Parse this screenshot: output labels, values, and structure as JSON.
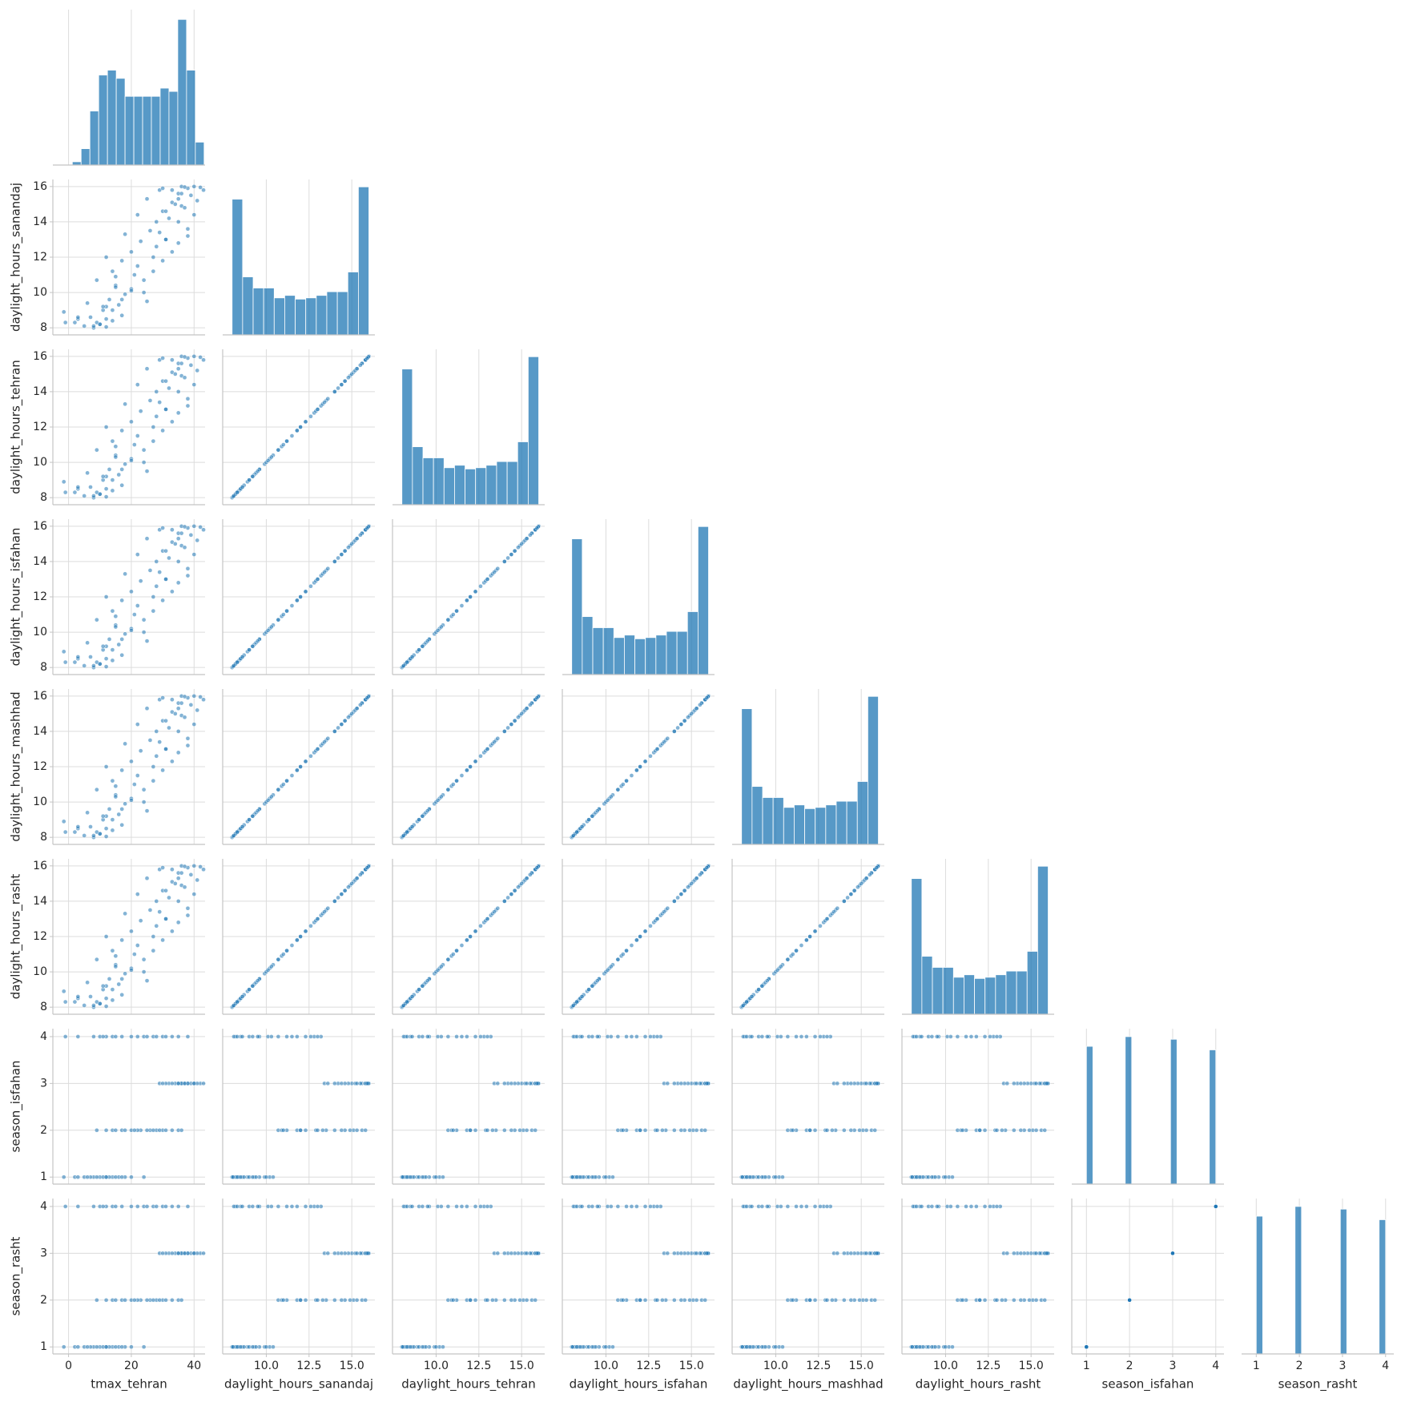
{
  "chart_data": {
    "type": "pairplot",
    "color": "#1f77b4",
    "grid": true,
    "corner": true,
    "variables": [
      {
        "name": "tmax_tehran",
        "xlim": [
          -5,
          43.5
        ],
        "xticks": [
          0,
          20,
          40
        ],
        "ylim": [
          -5,
          43.5
        ],
        "yticks": []
      },
      {
        "name": "daylight_hours_sanandaj",
        "xlim": [
          7.45,
          16.35
        ],
        "xticks": [
          {
            "value": 10,
            "label": "10.0"
          },
          {
            "value": 12.5,
            "label": "12.5"
          },
          {
            "value": 15,
            "label": "15.0"
          }
        ],
        "ylim": [
          7.6,
          16.4
        ],
        "yticks": [
          8,
          10,
          12,
          14,
          16
        ]
      },
      {
        "name": "daylight_hours_tehran",
        "xlim": [
          7.45,
          16.35
        ],
        "xticks": [
          {
            "value": 10,
            "label": "10.0"
          },
          {
            "value": 12.5,
            "label": "12.5"
          },
          {
            "value": 15,
            "label": "15.0"
          }
        ],
        "ylim": [
          7.6,
          16.4
        ],
        "yticks": [
          8,
          10,
          12,
          14,
          16
        ]
      },
      {
        "name": "daylight_hours_isfahan",
        "xlim": [
          7.45,
          16.35
        ],
        "xticks": [
          {
            "value": 10,
            "label": "10.0"
          },
          {
            "value": 12.5,
            "label": "12.5"
          },
          {
            "value": 15,
            "label": "15.0"
          }
        ],
        "ylim": [
          7.6,
          16.4
        ],
        "yticks": [
          8,
          10,
          12,
          14,
          16
        ]
      },
      {
        "name": "daylight_hours_mashhad",
        "xlim": [
          7.45,
          16.35
        ],
        "xticks": [
          {
            "value": 10,
            "label": "10.0"
          },
          {
            "value": 12.5,
            "label": "12.5"
          },
          {
            "value": 15,
            "label": "15.0"
          }
        ],
        "ylim": [
          7.6,
          16.4
        ],
        "yticks": [
          8,
          10,
          12,
          14,
          16
        ]
      },
      {
        "name": "daylight_hours_rasht",
        "xlim": [
          7.45,
          16.35
        ],
        "xticks": [
          {
            "value": 10,
            "label": "10.0"
          },
          {
            "value": 12.5,
            "label": "12.5"
          },
          {
            "value": 15,
            "label": "15.0"
          }
        ],
        "ylim": [
          7.6,
          16.4
        ],
        "yticks": [
          8,
          10,
          12,
          14,
          16
        ]
      },
      {
        "name": "season_isfahan",
        "xlim": [
          0.66,
          4.19
        ],
        "xticks": [
          1,
          2,
          3,
          4
        ],
        "ylim": [
          0.85,
          4.17
        ],
        "yticks": [
          1,
          2,
          3,
          4
        ]
      },
      {
        "name": "season_rasht",
        "xlim": [
          0.66,
          4.19
        ],
        "xticks": [
          1,
          2,
          3,
          4
        ],
        "ylim": [
          0.85,
          4.17
        ],
        "yticks": [
          1,
          2,
          3,
          4
        ]
      }
    ],
    "histograms": [
      {
        "bins": [
          1.2,
          4,
          6.8,
          9.6,
          12.4,
          15.2,
          18,
          20.8,
          23.6,
          26.4,
          29.2,
          32,
          34.8,
          37.6,
          40.4,
          43.2
        ],
        "counts": [
          2,
          10,
          33,
          55,
          58,
          53,
          42,
          42,
          42,
          42,
          47,
          45,
          89,
          58,
          14
        ],
        "ylim": [
          0,
          95
        ]
      },
      {
        "bins": [
          8,
          8.615,
          9.231,
          9.846,
          10.462,
          11.077,
          11.692,
          12.308,
          12.923,
          13.538,
          14.154,
          14.769,
          15.385,
          16
        ],
        "counts": [
          110,
          47,
          38,
          38,
          30,
          32,
          29,
          30,
          32,
          35,
          35,
          51,
          120
        ],
        "ylim": [
          0,
          126
        ]
      },
      {
        "bins": [
          8,
          8.615,
          9.231,
          9.846,
          10.462,
          11.077,
          11.692,
          12.308,
          12.923,
          13.538,
          14.154,
          14.769,
          15.385,
          16
        ],
        "counts": [
          110,
          47,
          38,
          38,
          30,
          32,
          29,
          30,
          32,
          35,
          35,
          51,
          120
        ],
        "ylim": [
          0,
          126
        ]
      },
      {
        "bins": [
          8,
          8.615,
          9.231,
          9.846,
          10.462,
          11.077,
          11.692,
          12.308,
          12.923,
          13.538,
          14.154,
          14.769,
          15.385,
          16
        ],
        "counts": [
          110,
          47,
          38,
          38,
          30,
          32,
          29,
          30,
          32,
          35,
          35,
          51,
          120
        ],
        "ylim": [
          0,
          126
        ]
      },
      {
        "bins": [
          8,
          8.615,
          9.231,
          9.846,
          10.462,
          11.077,
          11.692,
          12.308,
          12.923,
          13.538,
          14.154,
          14.769,
          15.385,
          16
        ],
        "counts": [
          110,
          47,
          38,
          38,
          30,
          32,
          29,
          30,
          32,
          35,
          35,
          51,
          120
        ],
        "ylim": [
          0,
          126
        ]
      },
      {
        "bins": [
          8,
          8.615,
          9.231,
          9.846,
          10.462,
          11.077,
          11.692,
          12.308,
          12.923,
          13.538,
          14.154,
          14.769,
          15.385,
          16
        ],
        "counts": [
          110,
          47,
          38,
          38,
          30,
          32,
          29,
          30,
          32,
          35,
          35,
          51,
          120
        ],
        "ylim": [
          0,
          126
        ]
      },
      {
        "bins": [
          1,
          1.15,
          1.3,
          1.45,
          1.6,
          1.75,
          1.9,
          2.05,
          2.2,
          2.35,
          2.5,
          2.65,
          2.8,
          2.95,
          3.1,
          3.25,
          3.4,
          3.55,
          3.7,
          3.85,
          4
        ],
        "counts": [
          156,
          0,
          0,
          0,
          0,
          0,
          167,
          0,
          0,
          0,
          0,
          0,
          0,
          164,
          0,
          0,
          0,
          0,
          0,
          152
        ],
        "ylim": [
          0,
          176
        ]
      },
      {
        "bins": [
          1,
          1.15,
          1.3,
          1.45,
          1.6,
          1.75,
          1.9,
          2.05,
          2.2,
          2.35,
          2.5,
          2.65,
          2.8,
          2.95,
          3.1,
          3.25,
          3.4,
          3.55,
          3.7,
          3.85,
          4
        ],
        "counts": [
          156,
          0,
          0,
          0,
          0,
          0,
          167,
          0,
          0,
          0,
          0,
          0,
          0,
          164,
          0,
          0,
          0,
          0,
          0,
          152
        ],
        "ylim": [
          0,
          176
        ]
      }
    ],
    "rows": [
      [
        -1.5,
        8.9,
        8.9,
        8.9,
        8.9,
        8.9,
        1,
        1
      ],
      [
        2,
        8.3,
        8.3,
        8.3,
        8.3,
        8.3,
        1,
        1
      ],
      [
        5,
        8.1,
        8.1,
        8.1,
        8.1,
        8.1,
        1,
        1
      ],
      [
        8,
        8.0,
        8.0,
        8.0,
        8.0,
        8.0,
        1,
        1
      ],
      [
        10,
        8.2,
        8.2,
        8.2,
        8.2,
        8.2,
        1,
        1
      ],
      [
        12,
        8.05,
        8.05,
        8.05,
        8.05,
        8.05,
        1,
        1
      ],
      [
        14,
        8.4,
        8.4,
        8.4,
        8.4,
        8.4,
        1,
        1
      ],
      [
        7,
        8.6,
        8.6,
        8.6,
        8.6,
        8.6,
        1,
        1
      ],
      [
        11,
        9.0,
        9.0,
        9.0,
        9.0,
        9.0,
        1,
        1
      ],
      [
        16,
        9.3,
        9.3,
        9.3,
        9.3,
        9.3,
        1,
        1
      ],
      [
        13,
        9.6,
        9.6,
        9.6,
        9.6,
        9.6,
        1,
        1
      ],
      [
        18,
        9.9,
        9.9,
        9.9,
        9.9,
        9.9,
        1,
        1
      ],
      [
        20,
        10.2,
        10.2,
        10.2,
        10.2,
        10.2,
        1,
        1
      ],
      [
        15,
        10.4,
        10.4,
        10.4,
        10.4,
        10.4,
        1,
        1
      ],
      [
        24,
        10.0,
        10.0,
        10.0,
        10.0,
        10.0,
        1,
        1
      ],
      [
        9,
        8.3,
        8.3,
        8.3,
        8.3,
        8.3,
        1,
        1
      ],
      [
        6,
        9.4,
        9.4,
        9.4,
        9.4,
        9.4,
        1,
        1
      ],
      [
        17,
        8.7,
        8.7,
        8.7,
        8.7,
        8.7,
        1,
        1
      ],
      [
        3,
        8.5,
        8.5,
        8.5,
        8.5,
        8.5,
        1,
        1
      ],
      [
        12,
        9.2,
        9.2,
        9.2,
        9.2,
        9.2,
        1,
        1
      ],
      [
        38,
        13.2,
        13.2,
        13.2,
        13.2,
        13.2,
        4,
        4
      ],
      [
        35,
        12.8,
        12.8,
        12.8,
        12.8,
        12.8,
        4,
        4
      ],
      [
        33,
        12.3,
        12.3,
        12.3,
        12.3,
        12.3,
        4,
        4
      ],
      [
        30,
        11.8,
        11.8,
        11.8,
        11.8,
        11.8,
        4,
        4
      ],
      [
        27,
        11.2,
        11.2,
        11.2,
        11.2,
        11.2,
        4,
        4
      ],
      [
        24,
        10.7,
        10.7,
        10.7,
        10.7,
        10.7,
        4,
        4
      ],
      [
        20,
        10.1,
        10.1,
        10.1,
        10.1,
        10.1,
        4,
        4
      ],
      [
        17,
        9.6,
        9.6,
        9.6,
        9.6,
        9.6,
        4,
        4
      ],
      [
        14,
        9.0,
        9.0,
        9.0,
        9.0,
        9.0,
        4,
        4
      ],
      [
        12,
        8.5,
        8.5,
        8.5,
        8.5,
        8.5,
        4,
        4
      ],
      [
        10,
        8.2,
        8.2,
        8.2,
        8.2,
        8.2,
        4,
        4
      ],
      [
        8,
        8.1,
        8.1,
        8.1,
        8.1,
        8.1,
        4,
        4
      ],
      [
        -1,
        8.3,
        8.3,
        8.3,
        8.3,
        8.3,
        4,
        4
      ],
      [
        3,
        8.6,
        8.6,
        8.6,
        8.6,
        8.6,
        4,
        4
      ],
      [
        22,
        11.5,
        11.5,
        11.5,
        11.5,
        11.5,
        4,
        4
      ],
      [
        28,
        12.6,
        12.6,
        12.6,
        12.6,
        12.6,
        4,
        4
      ],
      [
        15,
        10.3,
        10.3,
        10.3,
        10.3,
        10.3,
        4,
        4
      ],
      [
        11,
        9.2,
        9.2,
        9.2,
        9.2,
        9.2,
        4,
        4
      ],
      [
        25,
        9.5,
        9.5,
        9.5,
        9.5,
        9.5,
        4,
        4
      ],
      [
        31,
        13.0,
        13.0,
        13.0,
        13.0,
        13.0,
        4,
        4
      ],
      [
        9,
        10.7,
        10.7,
        10.7,
        10.7,
        10.7,
        2,
        2
      ],
      [
        14,
        11.2,
        11.2,
        11.2,
        11.2,
        11.2,
        2,
        2
      ],
      [
        17,
        11.8,
        11.8,
        11.8,
        11.8,
        11.8,
        2,
        2
      ],
      [
        20,
        12.3,
        12.3,
        12.3,
        12.3,
        12.3,
        2,
        2
      ],
      [
        23,
        12.9,
        12.9,
        12.9,
        12.9,
        12.9,
        2,
        2
      ],
      [
        26,
        13.5,
        13.5,
        13.5,
        13.5,
        13.5,
        2,
        2
      ],
      [
        28,
        14.0,
        14.0,
        14.0,
        14.0,
        14.0,
        2,
        2
      ],
      [
        30,
        14.6,
        14.6,
        14.6,
        14.6,
        14.6,
        2,
        2
      ],
      [
        33,
        15.1,
        15.1,
        15.1,
        15.1,
        15.1,
        2,
        2
      ],
      [
        35,
        15.6,
        15.6,
        15.6,
        15.6,
        15.6,
        2,
        2
      ],
      [
        12,
        12.0,
        12.0,
        12.0,
        12.0,
        12.0,
        2,
        2
      ],
      [
        18,
        13.3,
        13.3,
        13.3,
        13.3,
        13.3,
        2,
        2
      ],
      [
        22,
        14.4,
        14.4,
        14.4,
        14.4,
        14.4,
        2,
        2
      ],
      [
        25,
        15.3,
        15.3,
        15.3,
        15.3,
        15.3,
        2,
        2
      ],
      [
        31,
        13.0,
        13.0,
        13.0,
        13.0,
        13.0,
        2,
        2
      ],
      [
        36,
        14.9,
        14.9,
        14.9,
        14.9,
        14.9,
        2,
        2
      ],
      [
        29,
        15.8,
        15.8,
        15.8,
        15.8,
        15.8,
        2,
        2
      ],
      [
        15,
        10.9,
        10.9,
        10.9,
        10.9,
        10.9,
        2,
        2
      ],
      [
        27,
        12.0,
        12.0,
        12.0,
        12.0,
        12.0,
        2,
        2
      ],
      [
        21,
        11.0,
        11.0,
        11.0,
        11.0,
        11.0,
        2,
        2
      ],
      [
        29,
        13.4,
        13.4,
        13.4,
        13.4,
        13.4,
        3,
        3
      ],
      [
        32,
        14.2,
        14.2,
        14.2,
        14.2,
        14.2,
        3,
        3
      ],
      [
        34,
        15.0,
        15.0,
        15.0,
        15.0,
        15.0,
        3,
        3
      ],
      [
        36,
        15.6,
        15.6,
        15.6,
        15.6,
        15.6,
        3,
        3
      ],
      [
        38,
        15.9,
        15.9,
        15.9,
        15.9,
        15.9,
        3,
        3
      ],
      [
        40,
        16.0,
        16.0,
        16.0,
        16.0,
        16.0,
        3,
        3
      ],
      [
        42,
        15.95,
        15.95,
        15.95,
        15.95,
        15.95,
        3,
        3
      ],
      [
        39,
        15.5,
        15.5,
        15.5,
        15.5,
        15.5,
        3,
        3
      ],
      [
        37,
        14.8,
        14.8,
        14.8,
        14.8,
        14.8,
        3,
        3
      ],
      [
        35,
        14.0,
        14.0,
        14.0,
        14.0,
        14.0,
        3,
        3
      ],
      [
        41,
        15.2,
        15.2,
        15.2,
        15.2,
        15.2,
        3,
        3
      ],
      [
        33,
        15.8,
        15.8,
        15.8,
        15.8,
        15.8,
        3,
        3
      ],
      [
        36,
        16.0,
        16.0,
        16.0,
        16.0,
        16.0,
        3,
        3
      ],
      [
        31,
        14.6,
        14.6,
        14.6,
        14.6,
        14.6,
        3,
        3
      ],
      [
        38,
        13.6,
        13.6,
        13.6,
        13.6,
        13.6,
        3,
        3
      ],
      [
        40,
        14.4,
        14.4,
        14.4,
        14.4,
        14.4,
        3,
        3
      ],
      [
        43,
        15.8,
        15.8,
        15.8,
        15.8,
        15.8,
        3,
        3
      ],
      [
        35,
        15.3,
        15.3,
        15.3,
        15.3,
        15.3,
        3,
        3
      ],
      [
        37,
        15.97,
        15.97,
        15.97,
        15.97,
        15.97,
        3,
        3
      ],
      [
        30,
        15.9,
        15.9,
        15.9,
        15.9,
        15.9,
        3,
        3
      ]
    ]
  }
}
